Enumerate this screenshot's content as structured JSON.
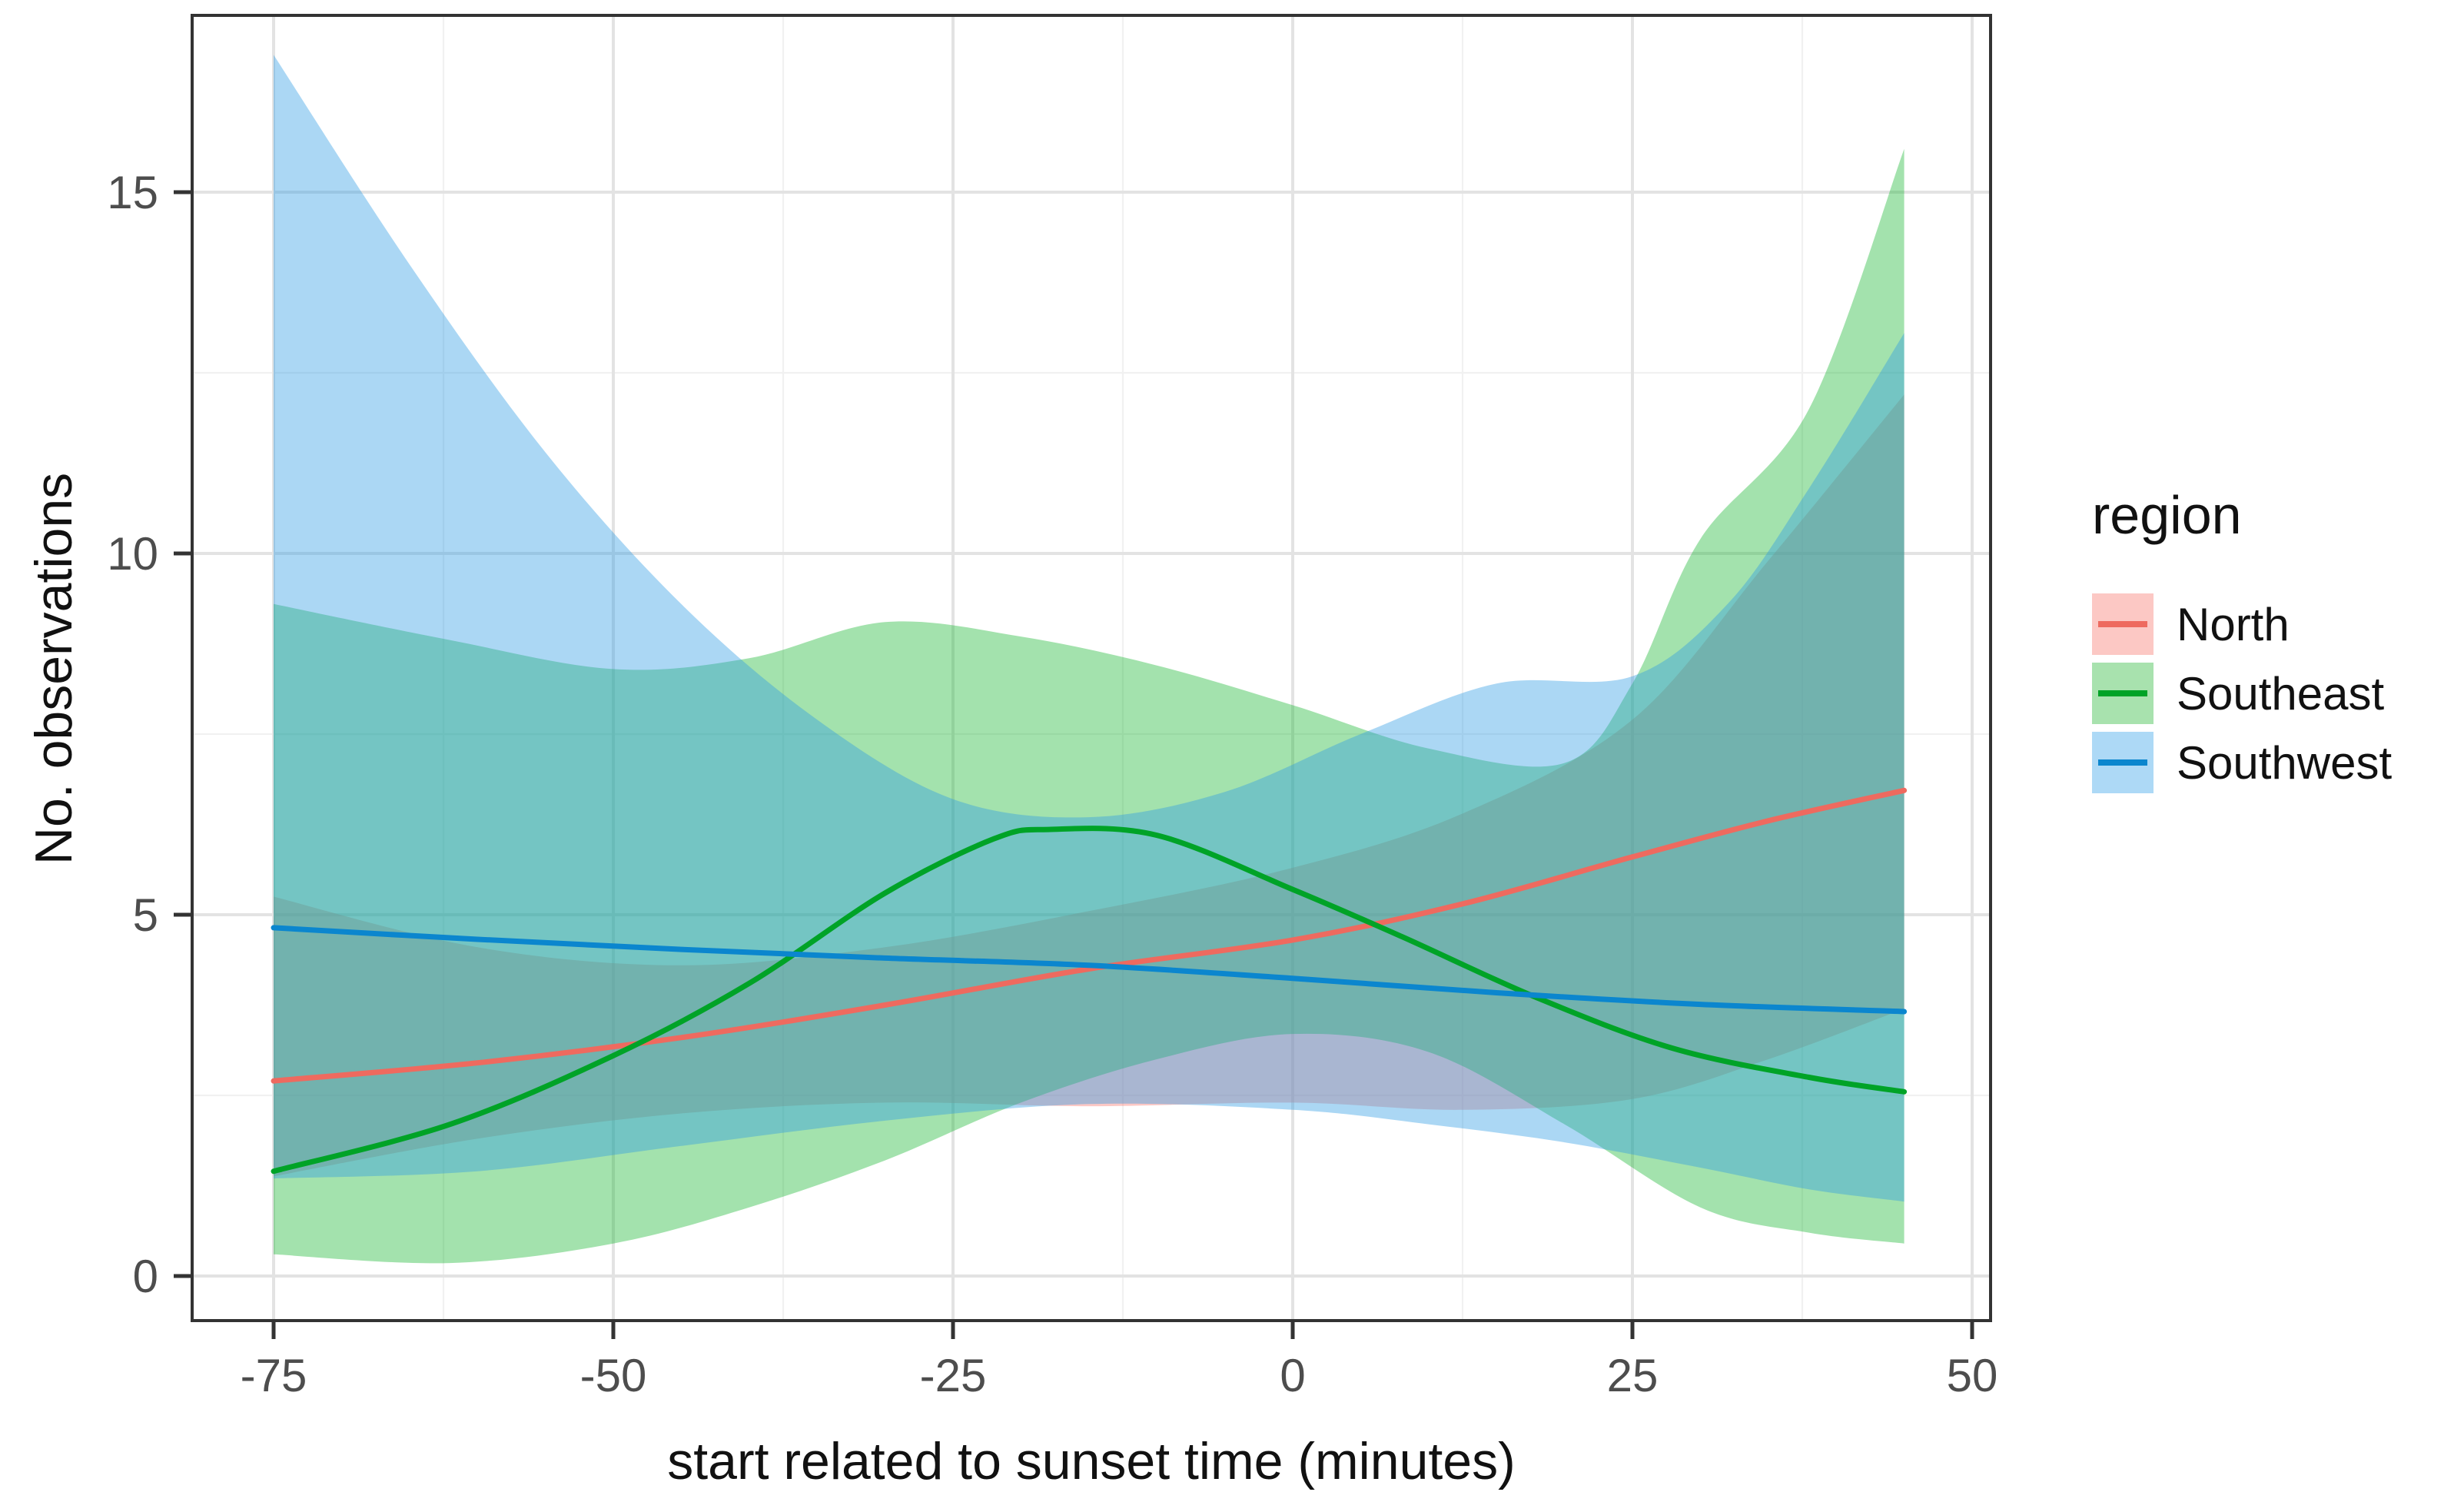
{
  "figure": {
    "background": "#ffffff"
  },
  "axes": {
    "x_title": "start related to sunset time (minutes)",
    "y_title": "No. observations",
    "x_major_ticks": [
      -75,
      -50,
      -25,
      0,
      25,
      50
    ],
    "x_tick_labels": [
      "-75",
      "-50",
      "-25",
      "0",
      "25",
      "50"
    ],
    "x_minor_ticks": [
      -62.5,
      -37.5,
      -12.5,
      12.5,
      37.5
    ],
    "y_major_ticks": [
      0,
      5,
      10,
      15
    ],
    "y_tick_labels": [
      "0",
      "5",
      "10",
      "15"
    ],
    "y_minor_ticks": [
      2.5,
      7.5,
      12.5
    ],
    "tick_label_color": "#4d4d4d",
    "panel_border_color": "#333333",
    "major_grid_color": "#e3e3e3",
    "minor_grid_color": "#f1f1f1"
  },
  "legend": {
    "title": "region",
    "items": [
      {
        "label": "North"
      },
      {
        "label": "Southeast"
      },
      {
        "label": "Southwest"
      }
    ]
  },
  "chart_data": {
    "type": "line",
    "title": "",
    "xlabel": "start related to sunset time (minutes)",
    "ylabel": "No. observations",
    "xlim": [
      -81,
      51.4
    ],
    "ylim": [
      -0.6,
      17.45
    ],
    "grid": true,
    "legend_position": "right",
    "x_data_range": [
      -75,
      45
    ],
    "series": [
      {
        "name": "North",
        "line_color": "#ee6a5f",
        "fill_color": "rgba(248,118,109,0.40)",
        "swatch_fill": "#fcc8c4",
        "line": [
          [
            -75,
            2.7
          ],
          [
            -60,
            2.95
          ],
          [
            -45,
            3.3
          ],
          [
            -30,
            3.75
          ],
          [
            -15,
            4.25
          ],
          [
            0,
            4.65
          ],
          [
            12.5,
            5.15
          ],
          [
            25,
            5.8
          ],
          [
            35,
            6.3
          ],
          [
            45,
            6.72
          ]
        ],
        "upper": [
          [
            -75,
            5.25
          ],
          [
            -60,
            4.55
          ],
          [
            -45,
            4.3
          ],
          [
            -30,
            4.55
          ],
          [
            -15,
            5.05
          ],
          [
            0,
            5.65
          ],
          [
            12.5,
            6.4
          ],
          [
            25,
            7.7
          ],
          [
            35,
            9.9
          ],
          [
            45,
            12.2
          ]
        ],
        "lower": [
          [
            -75,
            1.38
          ],
          [
            -60,
            1.9
          ],
          [
            -45,
            2.25
          ],
          [
            -30,
            2.4
          ],
          [
            -15,
            2.35
          ],
          [
            0,
            2.4
          ],
          [
            12.5,
            2.3
          ],
          [
            25,
            2.45
          ],
          [
            35,
            3.0
          ],
          [
            45,
            3.7
          ]
        ]
      },
      {
        "name": "Southeast",
        "line_color": "#00a327",
        "fill_color": "rgba(24,183,50,0.40)",
        "swatch_fill": "#a8e2ae",
        "line": [
          [
            -75,
            1.45
          ],
          [
            -62,
            2.1
          ],
          [
            -50,
            3.05
          ],
          [
            -40,
            4.05
          ],
          [
            -30,
            5.3
          ],
          [
            -22,
            6.05
          ],
          [
            -18,
            6.18
          ],
          [
            -10,
            6.1
          ],
          [
            0,
            5.35
          ],
          [
            8,
            4.7
          ],
          [
            18,
            3.85
          ],
          [
            28,
            3.15
          ],
          [
            38,
            2.75
          ],
          [
            45,
            2.55
          ]
        ],
        "upper": [
          [
            -75,
            9.3
          ],
          [
            -62,
            8.8
          ],
          [
            -50,
            8.4
          ],
          [
            -40,
            8.55
          ],
          [
            -30,
            9.05
          ],
          [
            -20,
            8.85
          ],
          [
            -10,
            8.45
          ],
          [
            0,
            7.9
          ],
          [
            10,
            7.3
          ],
          [
            20,
            7.1
          ],
          [
            25,
            8.2
          ],
          [
            30,
            10.2
          ],
          [
            38,
            12.0
          ],
          [
            45,
            15.6
          ]
        ],
        "lower": [
          [
            -75,
            0.3
          ],
          [
            -62,
            0.18
          ],
          [
            -50,
            0.45
          ],
          [
            -40,
            0.95
          ],
          [
            -30,
            1.6
          ],
          [
            -20,
            2.4
          ],
          [
            -10,
            3.0
          ],
          [
            0,
            3.35
          ],
          [
            10,
            3.1
          ],
          [
            20,
            2.1
          ],
          [
            30,
            0.95
          ],
          [
            38,
            0.6
          ],
          [
            45,
            0.45
          ]
        ]
      },
      {
        "name": "Southwest",
        "line_color": "#0b86ce",
        "fill_color": "rgba(44,156,228,0.40)",
        "swatch_fill": "#add9f6",
        "line": [
          [
            -75,
            4.82
          ],
          [
            -60,
            4.66
          ],
          [
            -45,
            4.52
          ],
          [
            -30,
            4.4
          ],
          [
            -15,
            4.3
          ],
          [
            0,
            4.12
          ],
          [
            15,
            3.92
          ],
          [
            30,
            3.76
          ],
          [
            45,
            3.66
          ]
        ],
        "upper": [
          [
            -75,
            16.9
          ],
          [
            -65,
            14.0
          ],
          [
            -55,
            11.4
          ],
          [
            -45,
            9.3
          ],
          [
            -35,
            7.7
          ],
          [
            -25,
            6.6
          ],
          [
            -15,
            6.35
          ],
          [
            -5,
            6.7
          ],
          [
            5,
            7.5
          ],
          [
            15,
            8.2
          ],
          [
            25,
            8.3
          ],
          [
            32,
            9.3
          ],
          [
            38,
            10.9
          ],
          [
            45,
            13.05
          ]
        ],
        "lower": [
          [
            -75,
            1.35
          ],
          [
            -60,
            1.45
          ],
          [
            -45,
            1.8
          ],
          [
            -30,
            2.15
          ],
          [
            -15,
            2.38
          ],
          [
            0,
            2.3
          ],
          [
            10,
            2.1
          ],
          [
            20,
            1.85
          ],
          [
            30,
            1.5
          ],
          [
            38,
            1.2
          ],
          [
            45,
            1.03
          ]
        ]
      }
    ]
  }
}
